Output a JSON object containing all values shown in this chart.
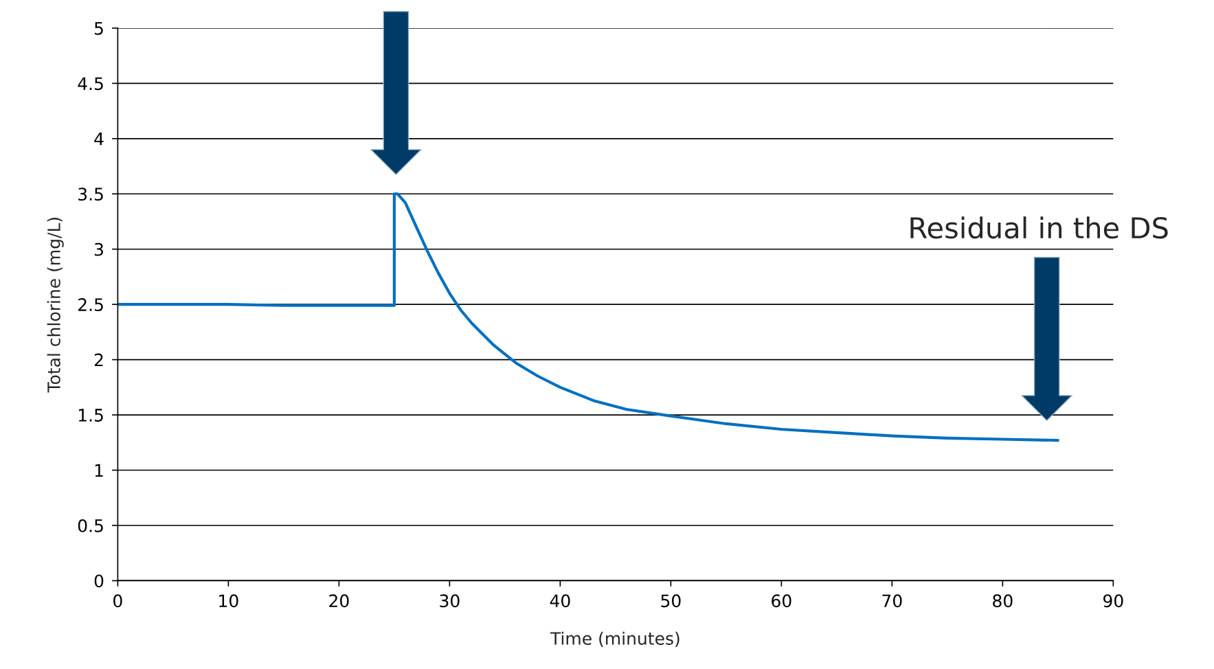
{
  "chart_data": {
    "type": "line",
    "xlabel": "Time (minutes)",
    "ylabel": "Total chlorine (mg/L)",
    "series": [
      {
        "color": "#0070c0",
        "x": [
          0,
          5,
          10,
          15,
          20,
          25,
          25,
          25.3,
          26,
          27,
          28,
          29,
          30,
          31,
          32,
          34,
          36,
          38,
          40,
          43,
          46,
          50,
          55,
          60,
          65,
          70,
          75,
          80,
          85
        ],
        "values": [
          2.5,
          2.5,
          2.5,
          2.49,
          2.49,
          2.49,
          3.5,
          3.5,
          3.42,
          3.2,
          2.98,
          2.78,
          2.6,
          2.45,
          2.33,
          2.13,
          1.97,
          1.85,
          1.75,
          1.63,
          1.55,
          1.49,
          1.42,
          1.37,
          1.34,
          1.31,
          1.29,
          1.28,
          1.27
        ]
      }
    ],
    "xlim": [
      0,
      90
    ],
    "xticks": [
      0,
      10,
      20,
      30,
      40,
      50,
      60,
      70,
      80,
      90
    ],
    "ylim": [
      0,
      5
    ],
    "yticks": [
      0,
      0.5,
      1,
      1.5,
      2,
      2.5,
      3,
      3.5,
      4,
      4.5,
      5
    ],
    "grid": "y",
    "legend": false,
    "marker": "none",
    "line_style": "solid",
    "annotations": [
      "Residual in the DS"
    ]
  }
}
